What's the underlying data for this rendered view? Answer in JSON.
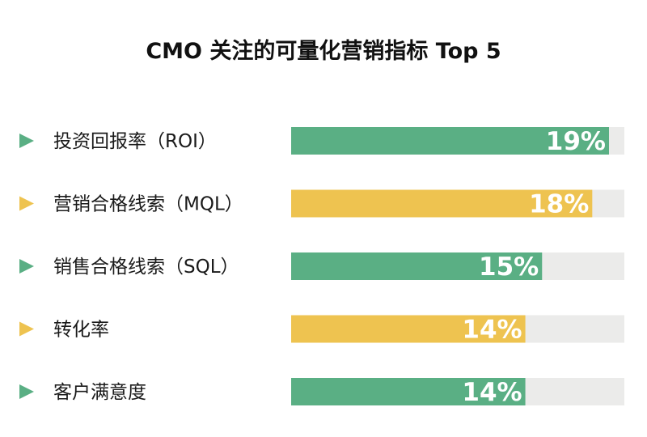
{
  "chart_data": {
    "type": "bar",
    "orientation": "horizontal",
    "title": "CMO 关注的可量化营销指标 Top 5",
    "categories": [
      "投资回报率（ROI）",
      "营销合格线索（MQL）",
      "销售合格线索（SQL）",
      "转化率",
      "客户满意度"
    ],
    "values": [
      19,
      18,
      15,
      14,
      14
    ],
    "value_labels": [
      "19%",
      "18%",
      "15%",
      "14%",
      "14%"
    ],
    "xlim": [
      0,
      20
    ],
    "grid": false,
    "legend": "none"
  },
  "colors": {
    "green": "#5aaf84",
    "yellow": "#eec350",
    "track": "#ebebea",
    "title": "#111111",
    "label": "#1a1a1a",
    "value_text": "#ffffff"
  },
  "bar_colors": [
    "green",
    "yellow",
    "green",
    "yellow",
    "green"
  ],
  "icons": [
    "triangle-right-icon"
  ]
}
